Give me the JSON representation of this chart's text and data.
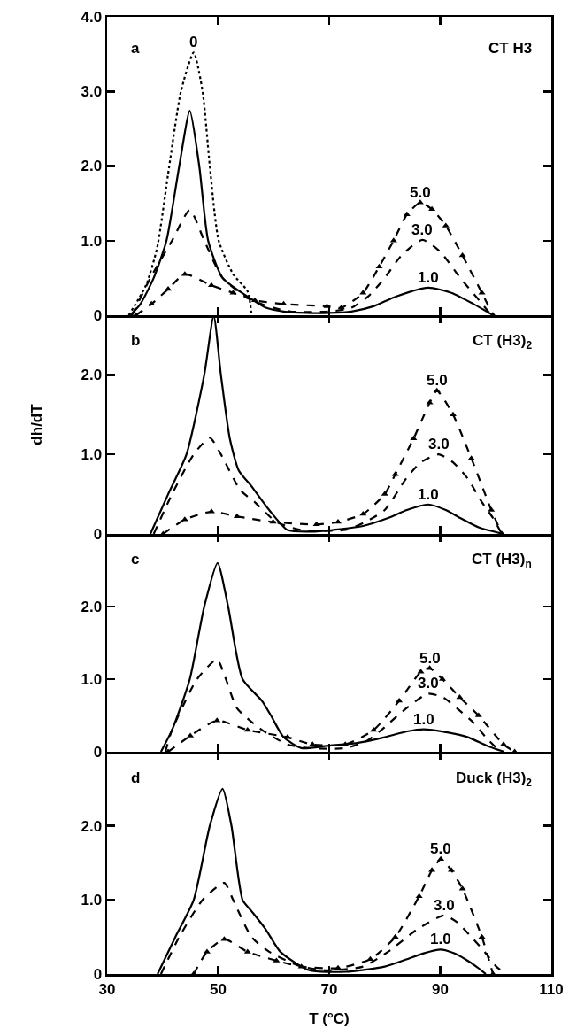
{
  "chart_data": [
    {
      "type": "line",
      "annotations": [
        "a",
        "CT H3"
      ],
      "xlim": [
        30,
        110
      ],
      "xticks": [
        30,
        50,
        70,
        90,
        110
      ],
      "ylim": [
        0,
        4.0
      ],
      "yticks": [
        {
          "value": 0,
          "label": "0"
        },
        {
          "value": 1,
          "label": "1.0"
        },
        {
          "value": 2,
          "label": "2.0"
        },
        {
          "value": 3,
          "label": "3.0"
        },
        {
          "value": 4,
          "label": "4.0"
        }
      ],
      "tick_labels": "y",
      "grid": false,
      "legend": false,
      "series": [
        {
          "name": "0",
          "color": "#000000",
          "line_style": "dotted",
          "x": [
            33.9,
            37,
            39,
            41.2,
            43.3,
            45.6,
            47.2,
            48.5,
            50.1,
            52.7,
            55.3,
            56
          ],
          "values": [
            0,
            0.4,
            0.9,
            2.0,
            3.0,
            3.52,
            3.0,
            2.0,
            1.0,
            0.55,
            0.32,
            0.02
          ]
        },
        {
          "name": "1.0",
          "color": "#000000",
          "line_style": "solid",
          "x": [
            34.2,
            36,
            38.4,
            40.7,
            43,
            44.9,
            46.6,
            48.2,
            50.8,
            55.3,
            58.6,
            61.8,
            66,
            70,
            74,
            78,
            82,
            87.8,
            92,
            96,
            99.5
          ],
          "values": [
            0,
            0.15,
            0.5,
            1.0,
            2.0,
            2.74,
            2.0,
            1.0,
            0.5,
            0.25,
            0.1,
            0.05,
            0.03,
            0.03,
            0.05,
            0.12,
            0.25,
            0.37,
            0.3,
            0.15,
            0
          ]
        },
        {
          "name": "3.0",
          "color": "#000000",
          "line_style": "dashed",
          "x": [
            34.5,
            37.8,
            41.7,
            44.9,
            47.5,
            50.8,
            56,
            60,
            63,
            70,
            74,
            77,
            80,
            83,
            86.8,
            90,
            93.6,
            97,
            99.2
          ],
          "values": [
            0,
            0.5,
            1.0,
            1.41,
            1.0,
            0.5,
            0.2,
            0.1,
            0.05,
            0.05,
            0.1,
            0.25,
            0.5,
            0.8,
            1.01,
            0.85,
            0.5,
            0.2,
            0
          ]
        },
        {
          "name": "5.0",
          "color": "#000000",
          "line_style": "dashed",
          "marker": "triangle",
          "x": [
            35.2,
            38,
            41,
            44,
            48.8,
            52.7,
            56.6,
            61.8,
            69.6,
            72.2,
            76.1,
            79,
            81.6,
            84,
            86.4,
            88.5,
            91,
            94,
            97.5,
            99.5
          ],
          "values": [
            0,
            0.15,
            0.35,
            0.55,
            0.4,
            0.3,
            0.2,
            0.15,
            0.12,
            0.1,
            0.3,
            0.65,
            1.0,
            1.35,
            1.51,
            1.42,
            1.2,
            0.8,
            0.3,
            0
          ]
        }
      ]
    },
    {
      "type": "line",
      "annotations": [
        "b",
        "CT (H3)$_{2}$"
      ],
      "ylabel": "dh/dT",
      "xlim": [
        30,
        110
      ],
      "xticks": [
        30,
        50,
        70,
        90,
        110
      ],
      "ylim": [
        0,
        2.75
      ],
      "yticks": [
        {
          "value": 0,
          "label": "0"
        },
        {
          "value": 1,
          "label": "1.0"
        },
        {
          "value": 2,
          "label": "2.0"
        }
      ],
      "tick_labels": "y",
      "grid": false,
      "legend": false,
      "series": [
        {
          "name": "1.0",
          "color": "#000000",
          "line_style": "solid",
          "x": [
            37.8,
            41,
            44.3,
            47.5,
            49.2,
            50.5,
            52.1,
            53.7,
            56,
            59.2,
            62.5,
            67,
            72,
            76.1,
            80.6,
            84,
            87.8,
            91,
            93.6,
            97,
            101.4
          ],
          "values": [
            0,
            0.5,
            1.0,
            2.0,
            2.74,
            2.0,
            1.2,
            0.8,
            0.6,
            0.3,
            0.05,
            0.03,
            0.06,
            0.1,
            0.2,
            0.3,
            0.37,
            0.3,
            0.2,
            0.08,
            0
          ]
        },
        {
          "name": "3.0",
          "color": "#000000",
          "line_style": "dashed",
          "x": [
            38.4,
            41.7,
            45.6,
            48.5,
            50.5,
            54,
            56.6,
            60.5,
            65,
            72.9,
            76.5,
            80,
            83.9,
            86.5,
            89.7,
            92.3,
            94.9,
            97.5,
            99.5,
            101.1
          ],
          "values": [
            0,
            0.5,
            1.0,
            1.21,
            1.0,
            0.55,
            0.4,
            0.15,
            0.05,
            0.05,
            0.15,
            0.3,
            0.7,
            0.9,
            1.0,
            0.9,
            0.7,
            0.4,
            0.2,
            0
          ]
        },
        {
          "name": "5.0",
          "color": "#000000",
          "line_style": "dashed",
          "marker": "triangle",
          "x": [
            40.1,
            44,
            48.8,
            53.4,
            59.9,
            67.7,
            71.6,
            76.1,
            80,
            81.9,
            85.2,
            88.1,
            89.4,
            92.3,
            95.6,
            99.2,
            101.1
          ],
          "values": [
            0,
            0.18,
            0.28,
            0.22,
            0.15,
            0.12,
            0.15,
            0.25,
            0.5,
            0.75,
            1.2,
            1.65,
            1.8,
            1.5,
            0.95,
            0.3,
            0
          ]
        }
      ]
    },
    {
      "type": "line",
      "annotations": [
        "c",
        "CT (H3)$_{n}$"
      ],
      "xlim": [
        30,
        110
      ],
      "xticks": [
        30,
        50,
        70,
        90,
        110
      ],
      "ylim": [
        0,
        3.0
      ],
      "yticks": [
        {
          "value": 0,
          "label": "0"
        },
        {
          "value": 1,
          "label": "1.0"
        },
        {
          "value": 2,
          "label": "2.0"
        }
      ],
      "tick_labels": "y",
      "grid": false,
      "legend": false,
      "series": [
        {
          "name": "1.0",
          "color": "#000000",
          "line_style": "solid",
          "x": [
            39.7,
            41.7,
            44.9,
            47.5,
            49.9,
            51.8,
            54.4,
            57.9,
            59.5,
            61.8,
            65,
            69.6,
            75,
            80,
            84,
            87,
            91,
            95,
            98.5,
            101.5
          ],
          "values": [
            0,
            0.3,
            1.0,
            2.0,
            2.6,
            2.0,
            1.0,
            0.7,
            0.5,
            0.2,
            0.05,
            0.08,
            0.12,
            0.2,
            0.28,
            0.31,
            0.27,
            0.2,
            0.08,
            0
          ]
        },
        {
          "name": "3.0",
          "color": "#000000",
          "line_style": "dashed",
          "x": [
            40.5,
            41.7,
            46.2,
            49.8,
            51.4,
            53.4,
            57.9,
            62.5,
            66.4,
            72.9,
            76.8,
            79.4,
            83.9,
            87.8,
            90.5,
            93,
            96,
            98.2,
            100.8
          ],
          "values": [
            0,
            0.3,
            1.0,
            1.27,
            1.0,
            0.6,
            0.3,
            0.1,
            0.05,
            0.05,
            0.15,
            0.3,
            0.6,
            0.8,
            0.75,
            0.6,
            0.4,
            0.2,
            0
          ]
        },
        {
          "name": "5.0",
          "color": "#000000",
          "line_style": "dashed",
          "marker": "triangle",
          "x": [
            41,
            45,
            49.8,
            55.3,
            62.5,
            67,
            72.9,
            78,
            82.6,
            86.5,
            88.1,
            90.4,
            93.5,
            96.9,
            101.4,
            103.4
          ],
          "values": [
            0,
            0.22,
            0.43,
            0.3,
            0.2,
            0.1,
            0.1,
            0.3,
            0.7,
            1.1,
            1.15,
            1.0,
            0.75,
            0.5,
            0.1,
            0
          ]
        }
      ]
    },
    {
      "type": "line",
      "annotations": [
        "d",
        "Duck (H3)$_{2}$"
      ],
      "xlabel": "T (°C)",
      "xlim": [
        30,
        110
      ],
      "xticks": [
        30,
        50,
        70,
        90,
        110
      ],
      "ylim": [
        0,
        3.0
      ],
      "yticks": [
        {
          "value": 0,
          "label": "0"
        },
        {
          "value": 1,
          "label": "1.0"
        },
        {
          "value": 2,
          "label": "2.0"
        }
      ],
      "grid": false,
      "legend": false,
      "series": [
        {
          "name": "1.0",
          "color": "#000000",
          "line_style": "solid",
          "x": [
            39.1,
            42.3,
            45.6,
            48.5,
            50.8,
            52.4,
            54.4,
            56,
            58.6,
            61.2,
            66.4,
            72.9,
            80,
            84,
            87,
            90.1,
            92.5,
            94.5,
            96.5,
            98.2
          ],
          "values": [
            0,
            0.5,
            1.0,
            2.0,
            2.5,
            2.0,
            1.0,
            0.85,
            0.6,
            0.3,
            0.05,
            0.03,
            0.1,
            0.2,
            0.28,
            0.33,
            0.28,
            0.2,
            0.1,
            0
          ]
        },
        {
          "name": "3.0",
          "color": "#000000",
          "line_style": "dashed",
          "x": [
            39.7,
            43,
            47.2,
            51.1,
            52.7,
            56,
            59.2,
            65,
            69.6,
            76.1,
            80.6,
            85.8,
            90.7,
            93,
            95.6,
            98,
            100.1,
            101.8
          ],
          "values": [
            0,
            0.5,
            1.0,
            1.23,
            1.0,
            0.5,
            0.3,
            0.1,
            0.05,
            0.1,
            0.3,
            0.6,
            0.79,
            0.7,
            0.5,
            0.3,
            0.1,
            0
          ]
        },
        {
          "name": "5.0",
          "color": "#000000",
          "line_style": "dashed",
          "marker": "triangle",
          "x": [
            45.6,
            48,
            51.1,
            55.3,
            60.5,
            65,
            71.6,
            77.4,
            81.9,
            86.2,
            88.5,
            90.1,
            92,
            94,
            97.5,
            99.5
          ],
          "values": [
            0,
            0.3,
            0.47,
            0.3,
            0.18,
            0.1,
            0.08,
            0.2,
            0.5,
            1.05,
            1.4,
            1.55,
            1.4,
            1.15,
            0.5,
            0
          ]
        }
      ]
    }
  ]
}
